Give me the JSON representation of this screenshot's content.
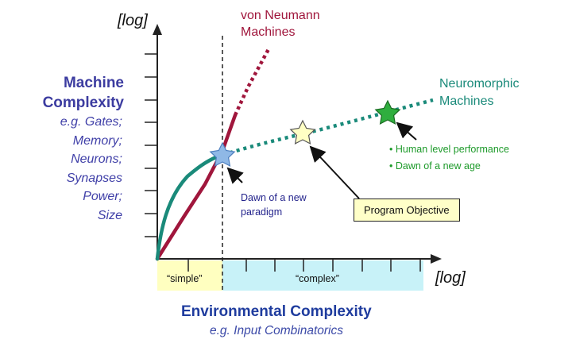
{
  "axes": {
    "y_scale_label": "[log]",
    "x_scale_label": "[log]"
  },
  "y_axis": {
    "title_lines": [
      "Machine",
      "Complexity"
    ],
    "examples": [
      "e.g. Gates;",
      "Memory;",
      "Neurons;",
      "Synapses",
      "Power;",
      "Size"
    ]
  },
  "x_axis": {
    "title": "Environmental Complexity",
    "subtitle": "e.g. Input Combinatorics"
  },
  "regions": {
    "simple": "“simple”",
    "complex": "“complex”"
  },
  "curves": {
    "von_neumann": {
      "lines": [
        "von Neumann",
        "Machines"
      ],
      "color": "#a0163c"
    },
    "neuromorphic": {
      "lines": [
        "Neuromorphic",
        "Machines"
      ],
      "color": "#1a8a7a"
    }
  },
  "annotations": {
    "dawn": [
      "Dawn of a new",
      "paradigm"
    ],
    "program_objective": "Program Objective",
    "human_level": [
      "• Human level performance",
      "• Dawn of a new age"
    ]
  },
  "colors": {
    "simple_region": "#ffffc0",
    "complex_region": "#c8f2f8",
    "axis": "#222222",
    "star_blue": "#8fb8e6",
    "star_yellow": "#ffffc4",
    "star_green": "#2fae3e"
  },
  "icons": [
    "star-icon",
    "arrow-icon"
  ]
}
